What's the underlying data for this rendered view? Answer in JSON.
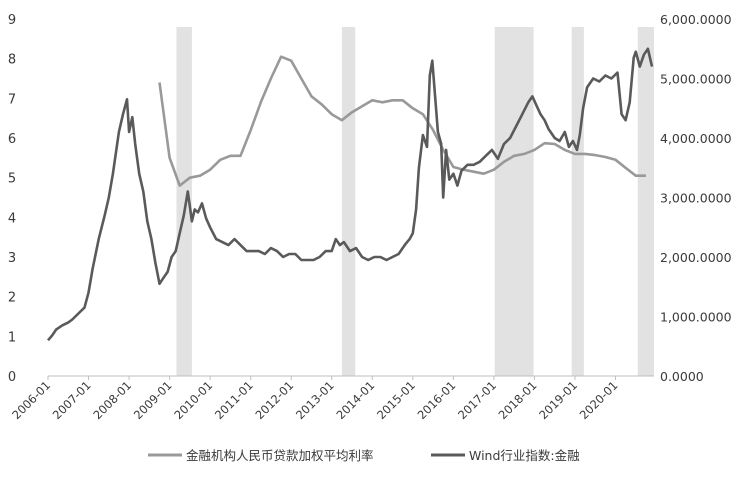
{
  "chart_data": {
    "type": "line",
    "title": "",
    "x_tick_labels": [
      "2006-01",
      "2007-01",
      "2008-01",
      "2009-01",
      "2010-01",
      "2011-01",
      "2012-01",
      "2013-01",
      "2014-01",
      "2015-01",
      "2016-01",
      "2017-01",
      "2018-01",
      "2019-01",
      "2020-01"
    ],
    "x_range": [
      2006.0,
      2020.95
    ],
    "left_axis": {
      "ylim": [
        0,
        9
      ],
      "ticks": [
        0,
        1,
        2,
        3,
        4,
        5,
        6,
        7,
        8,
        9
      ],
      "tick_labels": [
        "0",
        "1",
        "2",
        "3",
        "4",
        "5",
        "6",
        "7",
        "8",
        "9"
      ]
    },
    "right_axis": {
      "ylim": [
        0,
        6000
      ],
      "ticks": [
        0,
        1000,
        2000,
        3000,
        4000,
        5000,
        6000
      ],
      "tick_labels": [
        "0.0000",
        "1,000.0000",
        "2,000.0000",
        "3,000.0000",
        "4,000.0000",
        "5,000.0000",
        "6,000.0000"
      ]
    },
    "shaded_periods": [
      [
        2009.17,
        2009.55
      ],
      [
        2013.25,
        2013.58
      ],
      [
        2017.02,
        2017.98
      ],
      [
        2018.92,
        2019.22
      ],
      [
        2020.55,
        2020.95
      ]
    ],
    "grid": false,
    "legend_position": "bottom",
    "colors": {
      "rate": "#999999",
      "index": "#5a5a5a",
      "shade": "#e2e2e2",
      "axis": "#bfbfbf"
    },
    "series": [
      {
        "name": "金融机构人民币贷款加权平均利率",
        "axis": "left",
        "x": [
          2008.75,
          2009.0,
          2009.25,
          2009.5,
          2009.75,
          2010.0,
          2010.25,
          2010.5,
          2010.75,
          2011.0,
          2011.25,
          2011.5,
          2011.75,
          2012.0,
          2012.25,
          2012.5,
          2012.75,
          2013.0,
          2013.25,
          2013.5,
          2013.75,
          2014.0,
          2014.25,
          2014.5,
          2014.75,
          2015.0,
          2015.25,
          2015.5,
          2015.75,
          2016.0,
          2016.25,
          2016.5,
          2016.75,
          2017.0,
          2017.25,
          2017.5,
          2017.75,
          2018.0,
          2018.25,
          2018.5,
          2018.75,
          2019.0,
          2019.25,
          2019.5,
          2019.75,
          2020.0,
          2020.25,
          2020.5,
          2020.75
        ],
        "values": [
          7.4,
          5.5,
          4.8,
          5.0,
          5.05,
          5.2,
          5.45,
          5.55,
          5.55,
          6.2,
          6.9,
          7.5,
          8.05,
          7.95,
          7.5,
          7.05,
          6.85,
          6.6,
          6.45,
          6.65,
          6.8,
          6.95,
          6.9,
          6.95,
          6.95,
          6.75,
          6.6,
          6.2,
          5.7,
          5.27,
          5.2,
          5.15,
          5.1,
          5.2,
          5.4,
          5.55,
          5.6,
          5.7,
          5.87,
          5.85,
          5.7,
          5.6,
          5.6,
          5.57,
          5.52,
          5.45,
          5.25,
          5.05,
          5.05
        ]
      },
      {
        "name": "Wind行业指数:金融",
        "axis": "right",
        "x": [
          2006.0,
          2006.1,
          2006.2,
          2006.35,
          2006.5,
          2006.6,
          2006.75,
          2006.9,
          2007.0,
          2007.1,
          2007.25,
          2007.4,
          2007.5,
          2007.6,
          2007.75,
          2007.85,
          2007.95,
          2008.0,
          2008.08,
          2008.15,
          2008.25,
          2008.35,
          2008.45,
          2008.55,
          2008.65,
          2008.75,
          2008.85,
          2008.95,
          2009.05,
          2009.15,
          2009.25,
          2009.35,
          2009.45,
          2009.55,
          2009.62,
          2009.7,
          2009.8,
          2009.9,
          2010.0,
          2010.15,
          2010.3,
          2010.45,
          2010.6,
          2010.75,
          2010.9,
          2011.05,
          2011.2,
          2011.35,
          2011.5,
          2011.65,
          2011.8,
          2011.95,
          2012.1,
          2012.25,
          2012.4,
          2012.55,
          2012.7,
          2012.85,
          2013.0,
          2013.1,
          2013.2,
          2013.3,
          2013.45,
          2013.6,
          2013.75,
          2013.9,
          2014.05,
          2014.2,
          2014.35,
          2014.5,
          2014.65,
          2014.8,
          2014.92,
          2015.0,
          2015.08,
          2015.15,
          2015.25,
          2015.35,
          2015.42,
          2015.48,
          2015.55,
          2015.62,
          2015.7,
          2015.75,
          2015.82,
          2015.9,
          2016.0,
          2016.1,
          2016.2,
          2016.35,
          2016.5,
          2016.65,
          2016.8,
          2016.95,
          2017.1,
          2017.25,
          2017.4,
          2017.55,
          2017.7,
          2017.85,
          2017.95,
          2018.05,
          2018.15,
          2018.25,
          2018.35,
          2018.5,
          2018.62,
          2018.75,
          2018.85,
          2018.95,
          2019.05,
          2019.12,
          2019.2,
          2019.3,
          2019.45,
          2019.6,
          2019.75,
          2019.9,
          2020.05,
          2020.15,
          2020.25,
          2020.35,
          2020.45,
          2020.5,
          2020.6,
          2020.7,
          2020.8,
          2020.9
        ],
        "values": [
          600,
          680,
          780,
          850,
          900,
          950,
          1050,
          1150,
          1400,
          1800,
          2300,
          2700,
          3000,
          3400,
          4100,
          4400,
          4650,
          4100,
          4350,
          3900,
          3400,
          3100,
          2600,
          2300,
          1900,
          1550,
          1650,
          1750,
          2000,
          2100,
          2400,
          2700,
          3100,
          2600,
          2800,
          2750,
          2900,
          2650,
          2500,
          2300,
          2250,
          2200,
          2300,
          2200,
          2100,
          2100,
          2100,
          2050,
          2150,
          2100,
          2000,
          2050,
          2050,
          1950,
          1950,
          1950,
          2000,
          2100,
          2100,
          2300,
          2200,
          2250,
          2100,
          2150,
          2000,
          1950,
          2000,
          2000,
          1950,
          2000,
          2050,
          2200,
          2300,
          2400,
          2800,
          3500,
          4050,
          3850,
          5050,
          5300,
          4700,
          4100,
          3900,
          3000,
          3800,
          3300,
          3400,
          3200,
          3450,
          3550,
          3550,
          3600,
          3700,
          3800,
          3650,
          3900,
          4000,
          4200,
          4400,
          4600,
          4700,
          4550,
          4400,
          4300,
          4150,
          4000,
          3950,
          4100,
          3850,
          3950,
          3800,
          4050,
          4500,
          4850,
          5000,
          4950,
          5050,
          5000,
          5100,
          4400,
          4300,
          4600,
          5350,
          5450,
          5200,
          5400,
          5500,
          5200
        ]
      }
    ]
  }
}
